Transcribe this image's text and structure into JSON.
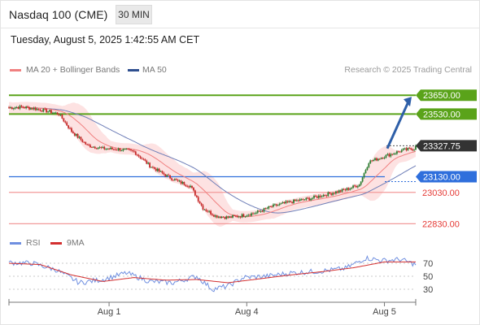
{
  "header": {
    "title": "Nasdaq 100 (CME)",
    "timeframe": "30 MIN",
    "datetime": "Tuesday, August 5, 2025 1:42:55 AM CET",
    "credit": "Research © 2025 Trading Central"
  },
  "legend": {
    "ma20_label": "MA 20 + Bollinger Bands",
    "ma50_label": "MA 50",
    "rsi_label": "RSI",
    "rsi_ma_label": "9MA"
  },
  "colors": {
    "ma20": "#f08080",
    "bollinger_fill": "#fcd8d8",
    "ma50": "#6f7fb8",
    "candle_up": "#2e7d32",
    "candle_down": "#c62828",
    "resistance": "#5aa31a",
    "pivot": "#2f6fdc",
    "support": "#f29a9a",
    "current": "#333333",
    "rsi": "#6f8fe0",
    "rsi_ma": "#d32f2f",
    "arrow": "#2e5fa8"
  },
  "chart_data": [
    {
      "type": "candlestick",
      "title": "Nasdaq 100 (CME)",
      "interval": "30 MIN",
      "x_ticks": [
        "Aug 1",
        "Aug 4",
        "Aug 5"
      ],
      "ylim": [
        22780,
        23760
      ],
      "last_price": 23327.75,
      "levels": [
        {
          "value": 23650.0,
          "label": "23650.00",
          "kind": "resistance"
        },
        {
          "value": 23530.0,
          "label": "23530.00",
          "kind": "resistance"
        },
        {
          "value": 23327.75,
          "label": "23327.75",
          "kind": "current"
        },
        {
          "value": 23130.0,
          "label": "23130.00",
          "kind": "pivot"
        },
        {
          "value": 23030.0,
          "label": "23030.00",
          "kind": "support"
        },
        {
          "value": 22830.0,
          "label": "22830.00",
          "kind": "support"
        }
      ],
      "projection": {
        "from": 23310,
        "to": 23640,
        "direction": "up"
      },
      "close_anchors": [
        [
          0,
          23570
        ],
        [
          8,
          23575
        ],
        [
          16,
          23565
        ],
        [
          24,
          23550
        ],
        [
          32,
          23530
        ],
        [
          40,
          23420
        ],
        [
          50,
          23330
        ],
        [
          60,
          23310
        ],
        [
          70,
          23305
        ],
        [
          80,
          23290
        ],
        [
          90,
          23200
        ],
        [
          100,
          23140
        ],
        [
          108,
          23100
        ],
        [
          116,
          23070
        ],
        [
          124,
          22930
        ],
        [
          132,
          22880
        ],
        [
          140,
          22870
        ],
        [
          148,
          22880
        ],
        [
          158,
          22900
        ],
        [
          168,
          22940
        ],
        [
          180,
          22970
        ],
        [
          192,
          22990
        ],
        [
          204,
          23020
        ],
        [
          216,
          23050
        ],
        [
          224,
          23080
        ],
        [
          230,
          23225
        ],
        [
          240,
          23260
        ],
        [
          252,
          23300
        ],
        [
          260,
          23310
        ]
      ],
      "series": [
        {
          "name": "MA 20 + Bollinger Bands"
        },
        {
          "name": "MA 50"
        }
      ]
    },
    {
      "type": "line",
      "title": "RSI",
      "ylim": [
        15,
        85
      ],
      "y_ticks": [
        70,
        50,
        30
      ],
      "series": [
        {
          "name": "RSI",
          "anchors": [
            [
              0,
              71
            ],
            [
              15,
              70
            ],
            [
              30,
              60
            ],
            [
              45,
              40
            ],
            [
              60,
              45
            ],
            [
              75,
              55
            ],
            [
              90,
              42
            ],
            [
              105,
              40
            ],
            [
              120,
              50
            ],
            [
              130,
              30
            ],
            [
              140,
              35
            ],
            [
              150,
              48
            ],
            [
              165,
              50
            ],
            [
              180,
              55
            ],
            [
              200,
              58
            ],
            [
              215,
              62
            ],
            [
              228,
              78
            ],
            [
              240,
              74
            ],
            [
              250,
              76
            ],
            [
              260,
              68
            ]
          ]
        },
        {
          "name": "9MA",
          "anchors": [
            [
              0,
              70
            ],
            [
              20,
              68
            ],
            [
              40,
              52
            ],
            [
              60,
              42
            ],
            [
              80,
              48
            ],
            [
              100,
              44
            ],
            [
              120,
              45
            ],
            [
              140,
              40
            ],
            [
              160,
              46
            ],
            [
              180,
              52
            ],
            [
              200,
              57
            ],
            [
              220,
              63
            ],
            [
              240,
              72
            ],
            [
              260,
              72
            ]
          ]
        }
      ]
    }
  ]
}
